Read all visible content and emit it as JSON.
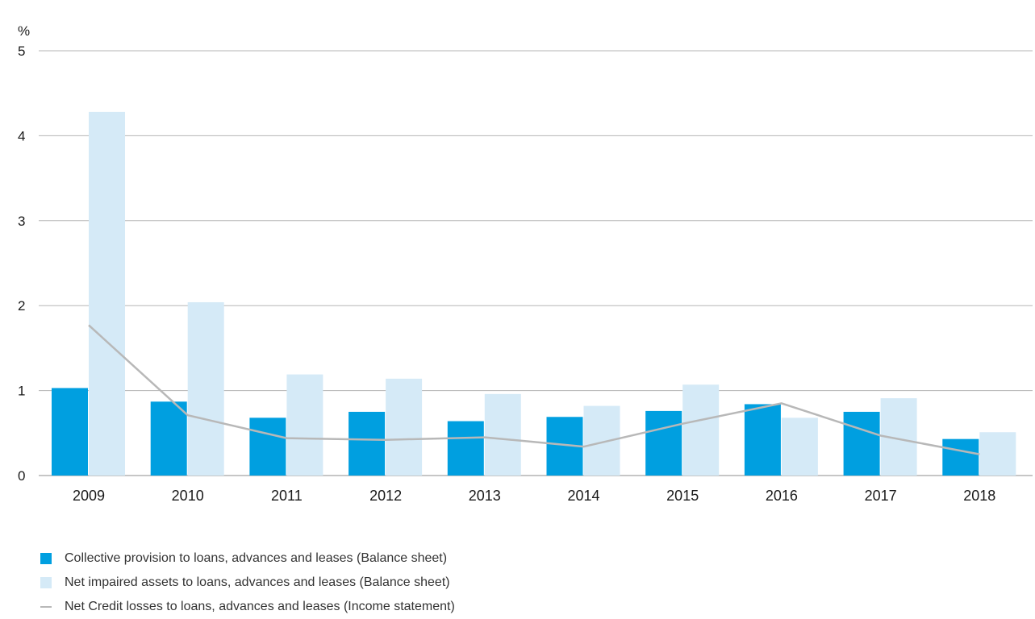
{
  "chart_data": {
    "type": "bar",
    "ylabel": "%",
    "ylim": [
      0,
      5
    ],
    "yticks": [
      "0",
      "1",
      "2",
      "3",
      "4",
      "5"
    ],
    "grid": true,
    "legend_position": "bottom-left",
    "categories": [
      "2009",
      "2010",
      "2011",
      "2012",
      "2013",
      "2014",
      "2015",
      "2016",
      "2017",
      "2018"
    ],
    "series": [
      {
        "name": "Collective provision to loans, advances and leases (Balance sheet)",
        "kind": "bar",
        "color": "#009fe0",
        "values": [
          1.03,
          0.87,
          0.68,
          0.75,
          0.64,
          0.69,
          0.76,
          0.84,
          0.75,
          0.43
        ]
      },
      {
        "name": "Net impaired assets to loans, advances and leases (Balance sheet)",
        "kind": "bar",
        "color": "#d5eaf7",
        "values": [
          4.28,
          2.04,
          1.19,
          1.14,
          0.96,
          0.82,
          1.07,
          0.68,
          0.91,
          0.51
        ]
      },
      {
        "name": "Net Credit losses to loans, advances and leases (Income statement)",
        "kind": "line",
        "color": "#b8b8b8",
        "values": [
          1.77,
          0.71,
          0.44,
          0.42,
          0.45,
          0.34,
          0.61,
          0.85,
          0.47,
          0.25
        ]
      }
    ]
  }
}
